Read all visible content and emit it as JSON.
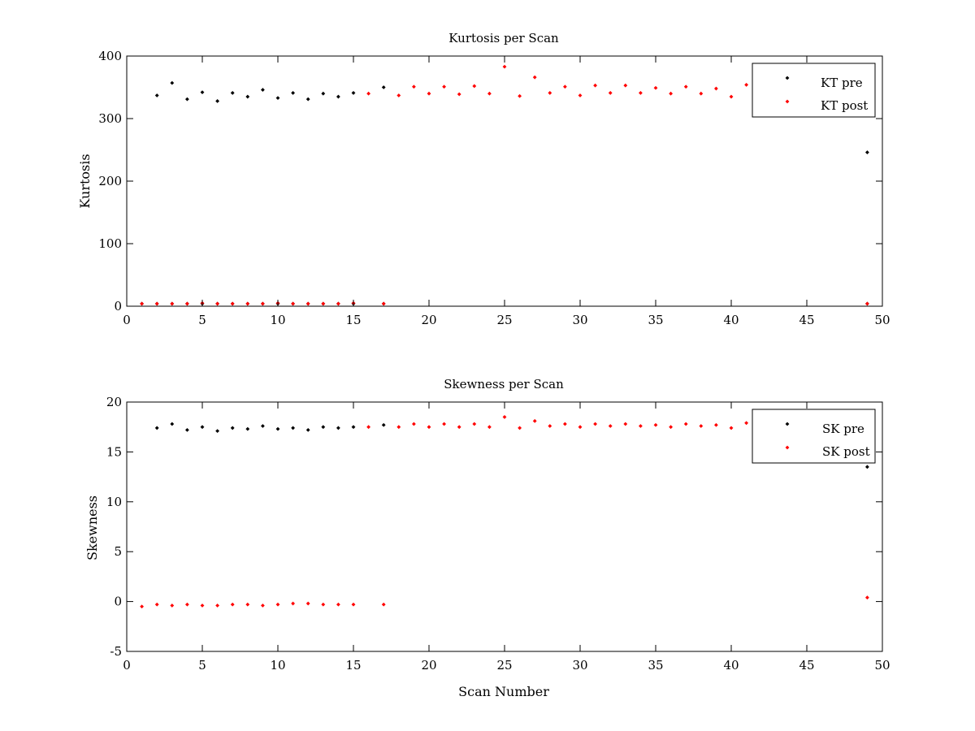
{
  "chart_data": [
    {
      "type": "scatter",
      "title": "Kurtosis per Scan",
      "xlabel": "",
      "ylabel": "Kurtosis",
      "xlim": [
        0,
        50
      ],
      "ylim": [
        0,
        400
      ],
      "xticks": [
        "0",
        "5",
        "10",
        "15",
        "20",
        "25",
        "30",
        "35",
        "40",
        "45",
        "50"
      ],
      "yticks": [
        "0",
        "100",
        "200",
        "300",
        "400"
      ],
      "grid": false,
      "legend_position": "top-right",
      "series": [
        {
          "name": "KT pre",
          "color": "#000000",
          "points": [
            [
              2,
              337
            ],
            [
              3,
              357
            ],
            [
              4,
              331
            ],
            [
              5,
              342
            ],
            [
              6,
              328
            ],
            [
              7,
              341
            ],
            [
              8,
              335
            ],
            [
              9,
              346
            ],
            [
              10,
              333
            ],
            [
              11,
              341
            ],
            [
              12,
              331
            ],
            [
              13,
              340
            ],
            [
              14,
              335
            ],
            [
              15,
              341
            ],
            [
              17,
              350
            ],
            [
              49,
              246
            ],
            [
              1,
              4
            ],
            [
              2,
              4
            ],
            [
              3,
              4
            ],
            [
              4,
              4
            ],
            [
              5,
              4
            ],
            [
              6,
              4
            ],
            [
              7,
              4
            ],
            [
              8,
              4
            ],
            [
              9,
              4
            ],
            [
              10,
              4
            ],
            [
              11,
              4
            ],
            [
              12,
              4
            ],
            [
              13,
              4
            ],
            [
              14,
              4
            ],
            [
              15,
              4
            ],
            [
              17,
              4
            ],
            [
              49,
              4
            ]
          ]
        },
        {
          "name": "KT post",
          "color": "#ff0000",
          "points": [
            [
              1,
              4
            ],
            [
              2,
              4
            ],
            [
              3,
              4
            ],
            [
              4,
              4
            ],
            [
              5,
              5
            ],
            [
              6,
              4
            ],
            [
              7,
              4
            ],
            [
              8,
              4
            ],
            [
              9,
              4
            ],
            [
              10,
              5
            ],
            [
              11,
              4
            ],
            [
              12,
              4
            ],
            [
              13,
              4
            ],
            [
              14,
              4
            ],
            [
              15,
              5
            ],
            [
              17,
              4
            ],
            [
              49,
              4
            ],
            [
              16,
              340
            ],
            [
              18,
              337
            ],
            [
              19,
              351
            ],
            [
              20,
              340
            ],
            [
              21,
              351
            ],
            [
              22,
              339
            ],
            [
              23,
              352
            ],
            [
              24,
              340
            ],
            [
              25,
              383
            ],
            [
              26,
              336
            ],
            [
              27,
              366
            ],
            [
              28,
              341
            ],
            [
              29,
              351
            ],
            [
              30,
              337
            ],
            [
              31,
              353
            ],
            [
              32,
              341
            ],
            [
              33,
              353
            ],
            [
              34,
              341
            ],
            [
              35,
              349
            ],
            [
              36,
              340
            ],
            [
              37,
              351
            ],
            [
              38,
              340
            ],
            [
              39,
              348
            ],
            [
              40,
              335
            ],
            [
              41,
              354
            ]
          ]
        }
      ]
    },
    {
      "type": "scatter",
      "title": "Skewness per Scan",
      "xlabel": "Scan Number",
      "ylabel": "Skewness",
      "xlim": [
        0,
        50
      ],
      "ylim": [
        -5,
        20
      ],
      "xticks": [
        "0",
        "5",
        "10",
        "15",
        "20",
        "25",
        "30",
        "35",
        "40",
        "45",
        "50"
      ],
      "yticks": [
        "-5",
        "0",
        "5",
        "10",
        "15",
        "20"
      ],
      "grid": false,
      "legend_position": "top-right",
      "series": [
        {
          "name": "SK pre",
          "color": "#000000",
          "points": [
            [
              2,
              17.4
            ],
            [
              3,
              17.8
            ],
            [
              4,
              17.2
            ],
            [
              5,
              17.5
            ],
            [
              6,
              17.1
            ],
            [
              7,
              17.4
            ],
            [
              8,
              17.3
            ],
            [
              9,
              17.6
            ],
            [
              10,
              17.3
            ],
            [
              11,
              17.4
            ],
            [
              12,
              17.2
            ],
            [
              13,
              17.5
            ],
            [
              14,
              17.4
            ],
            [
              15,
              17.5
            ],
            [
              17,
              17.7
            ],
            [
              49,
              13.5
            ]
          ]
        },
        {
          "name": "SK post",
          "color": "#ff0000",
          "points": [
            [
              1,
              -0.5
            ],
            [
              2,
              -0.3
            ],
            [
              3,
              -0.4
            ],
            [
              4,
              -0.3
            ],
            [
              5,
              -0.4
            ],
            [
              6,
              -0.4
            ],
            [
              7,
              -0.3
            ],
            [
              8,
              -0.3
            ],
            [
              9,
              -0.4
            ],
            [
              10,
              -0.3
            ],
            [
              11,
              -0.2
            ],
            [
              12,
              -0.2
            ],
            [
              13,
              -0.3
            ],
            [
              14,
              -0.3
            ],
            [
              15,
              -0.3
            ],
            [
              17,
              -0.3
            ],
            [
              49,
              0.4
            ],
            [
              16,
              17.5
            ],
            [
              18,
              17.5
            ],
            [
              19,
              17.8
            ],
            [
              20,
              17.5
            ],
            [
              21,
              17.8
            ],
            [
              22,
              17.5
            ],
            [
              23,
              17.8
            ],
            [
              24,
              17.5
            ],
            [
              25,
              18.5
            ],
            [
              26,
              17.4
            ],
            [
              27,
              18.1
            ],
            [
              28,
              17.6
            ],
            [
              29,
              17.8
            ],
            [
              30,
              17.5
            ],
            [
              31,
              17.8
            ],
            [
              32,
              17.6
            ],
            [
              33,
              17.8
            ],
            [
              34,
              17.6
            ],
            [
              35,
              17.7
            ],
            [
              36,
              17.5
            ],
            [
              37,
              17.8
            ],
            [
              38,
              17.6
            ],
            [
              39,
              17.7
            ],
            [
              40,
              17.4
            ],
            [
              41,
              17.9
            ]
          ]
        }
      ]
    }
  ]
}
